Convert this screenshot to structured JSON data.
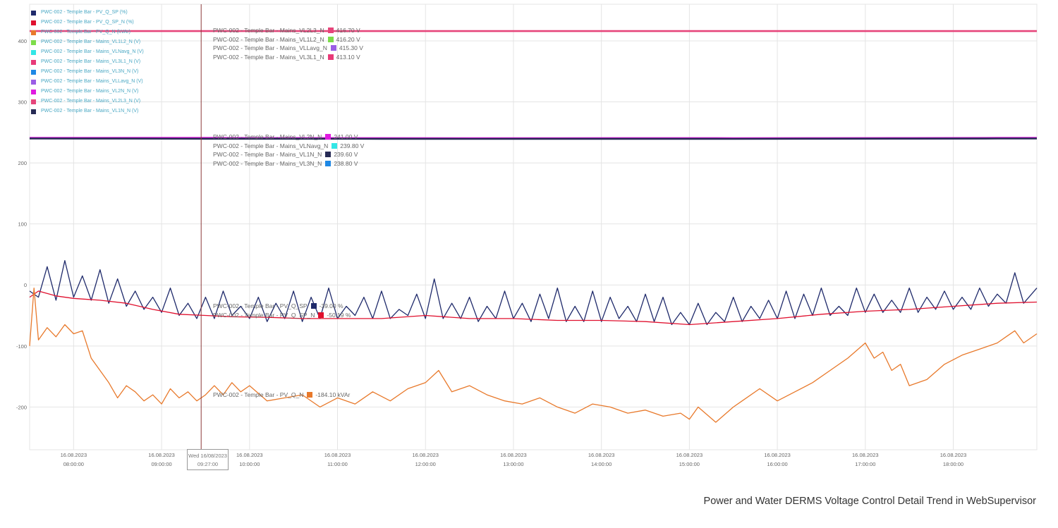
{
  "caption": "Power and Water DERMS Voltage Control Detail Trend in WebSupervisor",
  "legend": [
    {
      "label": "PWC-002 - Temple Bar - PV_Q_SP (%)",
      "color": "#1f2a6b"
    },
    {
      "label": "PWC-002 - Temple Bar - PV_Q_SP_N (%)",
      "color": "#e0102e"
    },
    {
      "label": "PWC-002 - Temple Bar - PV_Q_N (kVAr)",
      "color": "#e8792b"
    },
    {
      "label": "PWC-002 - Temple Bar - Mains_VL1L2_N (V)",
      "color": "#7ddc4a"
    },
    {
      "label": "PWC-002 - Temple Bar - Mains_VLNavg_N (V)",
      "color": "#33e6e6"
    },
    {
      "label": "PWC-002 - Temple Bar - Mains_VL3L1_N (V)",
      "color": "#e83a78"
    },
    {
      "label": "PWC-002 - Temple Bar - Mains_VL3N_N (V)",
      "color": "#1e88e5"
    },
    {
      "label": "PWC-002 - Temple Bar - Mains_VLLavg_N (V)",
      "color": "#9b5de5"
    },
    {
      "label": "PWC-002 - Temple Bar - Mains_VL2N_N (V)",
      "color": "#e01ae0"
    },
    {
      "label": "PWC-002 - Temple Bar - Mains_VL2L3_N (V)",
      "color": "#e6457a"
    },
    {
      "label": "PWC-002 - Temple Bar - Mains_VL1N_N (V)",
      "color": "#272b55"
    }
  ],
  "tooltips": {
    "line_line": [
      {
        "label": "PWC-002 - Temple Bar - Mains_VL2L3_N",
        "color": "#e6457a",
        "value": "416.70 V"
      },
      {
        "label": "PWC-002 - Temple Bar - Mains_VL1L2_N",
        "color": "#7ddc4a",
        "value": "416.20 V"
      },
      {
        "label": "PWC-002 - Temple Bar - Mains_VLLavg_N",
        "color": "#9b5de5",
        "value": "415.30 V"
      },
      {
        "label": "PWC-002 - Temple Bar - Mains_VL3L1_N",
        "color": "#e83a78",
        "value": "413.10 V"
      }
    ],
    "line_neutral": [
      {
        "label": "PWC-002 - Temple Bar - Mains_VL2N_N",
        "color": "#e01ae0",
        "value": "241.00 V"
      },
      {
        "label": "PWC-002 - Temple Bar - Mains_VLNavg_N",
        "color": "#33e6e6",
        "value": "239.80 V"
      },
      {
        "label": "PWC-002 - Temple Bar - Mains_VL1N_N",
        "color": "#272b55",
        "value": "239.60 V"
      },
      {
        "label": "PWC-002 - Temple Bar - Mains_VL3N_N",
        "color": "#1e88e5",
        "value": "238.80 V"
      }
    ],
    "setpoint": [
      {
        "label": "PWC-002 - Temple Bar - PV_Q_SP",
        "color": "#1f2a6b",
        "value": "-39.00 %"
      },
      {
        "label": "PWC-002 - Temple Bar - PV_Q_SP_N",
        "color": "#e0102e",
        "value": "-50.19 %"
      }
    ],
    "reactive": [
      {
        "label": "PWC-002 - Temple Bar - PV_Q_N",
        "color": "#e8792b",
        "value": "-184.10 kVAr"
      }
    ]
  },
  "cursor": {
    "date": "Wed 16/08/2023",
    "time": "09:27:00",
    "x": 9.45
  },
  "chart_data": {
    "type": "line",
    "ylim": [
      -270,
      460
    ],
    "xlim": [
      7.5,
      18.95
    ],
    "yticks": [
      400,
      300,
      200,
      100,
      0,
      -100,
      -200
    ],
    "xticks": [
      {
        "x": 8,
        "date": "16.08.2023",
        "time": "08:00:00"
      },
      {
        "x": 9,
        "date": "16.08.2023",
        "time": "09:00:00"
      },
      {
        "x": 10,
        "date": "16.08.2023",
        "time": "10:00:00"
      },
      {
        "x": 11,
        "date": "16.08.2023",
        "time": "11:00:00"
      },
      {
        "x": 12,
        "date": "16.08.2023",
        "time": "12:00:00"
      },
      {
        "x": 13,
        "date": "16.08.2023",
        "time": "13:00:00"
      },
      {
        "x": 14,
        "date": "16.08.2023",
        "time": "14:00:00"
      },
      {
        "x": 15,
        "date": "16.08.2023",
        "time": "15:00:00"
      },
      {
        "x": 16,
        "date": "16.08.2023",
        "time": "16:00:00"
      },
      {
        "x": 17,
        "date": "16.08.2023",
        "time": "17:00:00"
      },
      {
        "x": 18,
        "date": "16.08.2023",
        "time": "18:00:00"
      }
    ],
    "series": [
      {
        "name": "PWC-002 - Temple Bar - Mains_VL2L3_N (V)",
        "color": "#e6457a",
        "x": [
          7.5,
          8.5,
          9.5,
          10.5,
          11.5,
          12.5,
          13.5,
          14.5,
          15.5,
          16.5,
          17.5,
          18.5,
          18.95
        ],
        "y": [
          416,
          416,
          416,
          416,
          416,
          416,
          416,
          416,
          416,
          416,
          416,
          416,
          416
        ]
      },
      {
        "name": "PWC-002 - Temple Bar - Mains_VL2N_N (V)",
        "color": "#e01ae0",
        "x": [
          7.5,
          8.5,
          9.5,
          10.5,
          11.5,
          12.5,
          13.5,
          14.5,
          15.5,
          16.5,
          17.5,
          18.5,
          18.95
        ],
        "y": [
          241,
          241,
          241,
          240.8,
          240.6,
          240.4,
          240.5,
          240.6,
          240.5,
          240.7,
          240.8,
          241,
          241
        ]
      },
      {
        "name": "PWC-002 - Temple Bar - Mains_VL1N_N (V)",
        "color": "#272b55",
        "x": [
          7.5,
          8.5,
          9.5,
          10.5,
          11.5,
          12.5,
          13.5,
          14.5,
          15.5,
          16.5,
          17.5,
          18.5,
          18.95
        ],
        "y": [
          240,
          239.8,
          239.6,
          239.6,
          239.5,
          239.4,
          239.5,
          239.5,
          239.4,
          239.6,
          239.7,
          240,
          240
        ]
      },
      {
        "name": "PWC-002 - Temple Bar - PV_Q_SP (%)",
        "color": "#1f2a6b",
        "x": [
          7.5,
          7.6,
          7.7,
          7.8,
          7.9,
          8.0,
          8.1,
          8.2,
          8.3,
          8.4,
          8.5,
          8.6,
          8.7,
          8.8,
          8.9,
          9.0,
          9.1,
          9.2,
          9.3,
          9.4,
          9.5,
          9.6,
          9.7,
          9.8,
          9.9,
          10.0,
          10.1,
          10.2,
          10.3,
          10.4,
          10.5,
          10.6,
          10.7,
          10.8,
          10.9,
          11.0,
          11.1,
          11.2,
          11.3,
          11.4,
          11.5,
          11.6,
          11.7,
          11.8,
          11.9,
          12.0,
          12.1,
          12.2,
          12.3,
          12.4,
          12.5,
          12.6,
          12.7,
          12.8,
          12.9,
          13.0,
          13.1,
          13.2,
          13.3,
          13.4,
          13.5,
          13.6,
          13.7,
          13.8,
          13.9,
          14.0,
          14.1,
          14.2,
          14.3,
          14.4,
          14.5,
          14.6,
          14.7,
          14.8,
          14.9,
          15.0,
          15.1,
          15.2,
          15.3,
          15.4,
          15.5,
          15.6,
          15.7,
          15.8,
          15.9,
          16.0,
          16.1,
          16.2,
          16.3,
          16.4,
          16.5,
          16.6,
          16.7,
          16.8,
          16.9,
          17.0,
          17.1,
          17.2,
          17.3,
          17.4,
          17.5,
          17.6,
          17.7,
          17.8,
          17.9,
          18.0,
          18.1,
          18.2,
          18.3,
          18.4,
          18.5,
          18.6,
          18.7,
          18.8,
          18.95
        ],
        "y": [
          -10,
          -20,
          30,
          -25,
          40,
          -20,
          15,
          -25,
          25,
          -30,
          10,
          -35,
          -10,
          -40,
          -20,
          -45,
          -5,
          -50,
          -30,
          -55,
          -20,
          -55,
          -10,
          -50,
          -35,
          -55,
          -20,
          -60,
          -30,
          -55,
          -10,
          -60,
          -20,
          -55,
          -5,
          -55,
          -35,
          -50,
          -20,
          -55,
          -10,
          -55,
          -40,
          -50,
          -15,
          -55,
          10,
          -55,
          -30,
          -55,
          -20,
          -60,
          -35,
          -55,
          -10,
          -55,
          -30,
          -60,
          -15,
          -55,
          -5,
          -60,
          -35,
          -60,
          -10,
          -60,
          -20,
          -55,
          -35,
          -60,
          -15,
          -60,
          -20,
          -65,
          -45,
          -65,
          -30,
          -65,
          -45,
          -60,
          -20,
          -60,
          -35,
          -55,
          -25,
          -55,
          -10,
          -55,
          -15,
          -50,
          -5,
          -50,
          -35,
          -50,
          -5,
          -45,
          -15,
          -45,
          -25,
          -45,
          -5,
          -45,
          -20,
          -40,
          -10,
          -40,
          -20,
          -40,
          -5,
          -35,
          -15,
          -30,
          20,
          -30,
          -5
        ]
      },
      {
        "name": "PWC-002 - Temple Bar - PV_Q_SP_N (%)",
        "color": "#e0102e",
        "x": [
          7.5,
          7.6,
          7.8,
          8.0,
          8.3,
          8.6,
          8.9,
          9.2,
          9.5,
          9.8,
          10.2,
          10.6,
          11.0,
          11.5,
          12.0,
          12.5,
          13.0,
          13.5,
          14.0,
          14.5,
          15.0,
          15.5,
          16.0,
          16.5,
          17.0,
          17.5,
          18.0,
          18.5,
          18.95
        ],
        "y": [
          -20,
          -10,
          -18,
          -22,
          -25,
          -30,
          -40,
          -48,
          -50,
          -52,
          -53,
          -55,
          -55,
          -55,
          -50,
          -55,
          -55,
          -58,
          -58,
          -60,
          -65,
          -60,
          -55,
          -48,
          -43,
          -40,
          -35,
          -30,
          -28
        ]
      },
      {
        "name": "PWC-002 - Temple Bar - PV_Q_N (kVAr)",
        "color": "#e8792b",
        "x": [
          7.5,
          7.55,
          7.6,
          7.7,
          7.8,
          7.9,
          8.0,
          8.1,
          8.2,
          8.3,
          8.4,
          8.5,
          8.6,
          8.7,
          8.8,
          8.9,
          9.0,
          9.1,
          9.2,
          9.3,
          9.4,
          9.5,
          9.6,
          9.7,
          9.8,
          9.9,
          10.0,
          10.2,
          10.4,
          10.6,
          10.8,
          11.0,
          11.2,
          11.4,
          11.6,
          11.8,
          12.0,
          12.15,
          12.3,
          12.5,
          12.7,
          12.9,
          13.1,
          13.3,
          13.5,
          13.7,
          13.9,
          14.1,
          14.3,
          14.5,
          14.7,
          14.9,
          15.0,
          15.1,
          15.3,
          15.5,
          15.6,
          15.8,
          16.0,
          16.2,
          16.4,
          16.6,
          16.8,
          17.0,
          17.1,
          17.2,
          17.3,
          17.4,
          17.5,
          17.7,
          17.9,
          18.1,
          18.3,
          18.5,
          18.6,
          18.7,
          18.8,
          18.95
        ],
        "y": [
          -100,
          -5,
          -90,
          -70,
          -85,
          -65,
          -80,
          -75,
          -120,
          -140,
          -160,
          -185,
          -165,
          -175,
          -190,
          -180,
          -195,
          -170,
          -185,
          -175,
          -190,
          -180,
          -165,
          -180,
          -160,
          -175,
          -165,
          -190,
          -185,
          -180,
          -200,
          -185,
          -195,
          -175,
          -190,
          -170,
          -160,
          -140,
          -175,
          -165,
          -180,
          -190,
          -195,
          -185,
          -200,
          -210,
          -195,
          -200,
          -210,
          -205,
          -215,
          -210,
          -220,
          -200,
          -225,
          -200,
          -190,
          -170,
          -190,
          -175,
          -160,
          -140,
          -120,
          -95,
          -120,
          -110,
          -140,
          -130,
          -165,
          -155,
          -130,
          -115,
          -105,
          -95,
          -85,
          -75,
          -95,
          -80
        ]
      }
    ]
  }
}
